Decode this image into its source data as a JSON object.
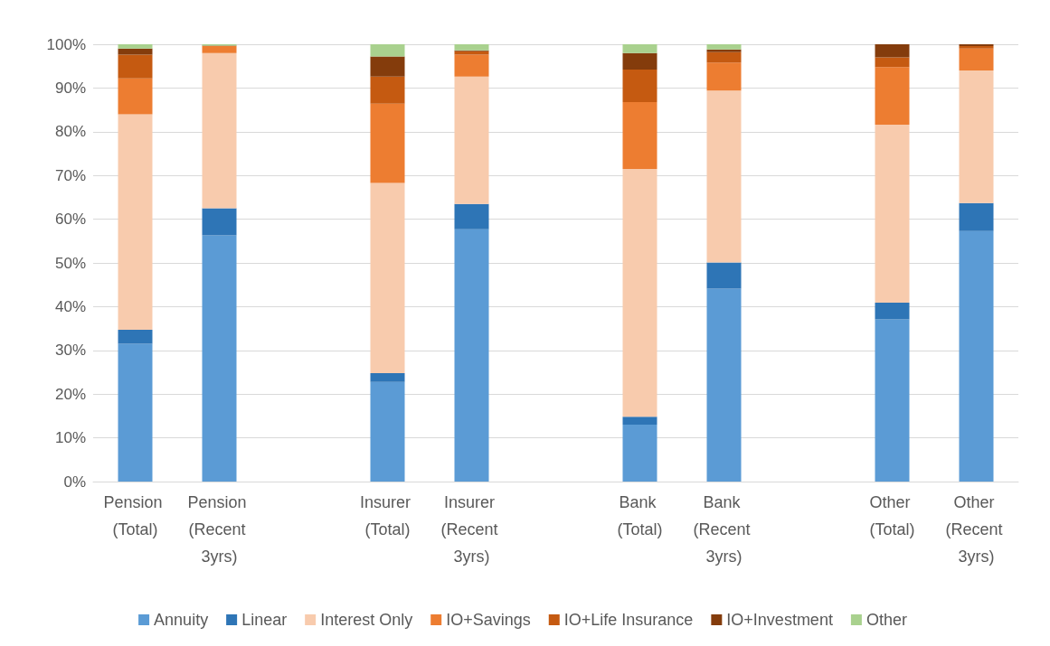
{
  "chart_data": {
    "type": "bar",
    "stacked": true,
    "grid": "y",
    "legend": "bottom",
    "categories": [
      "Pension (Total)",
      "Pension (Recent 3yrs)",
      null,
      "Insurer (Total)",
      "Insurer (Recent 3yrs)",
      null,
      "Bank (Total)",
      "Bank (Recent 3yrs)",
      null,
      "Other (Total)",
      "Other (Recent 3yrs)"
    ],
    "ylim": [
      0,
      100
    ],
    "yticks": [
      {
        "value": 0,
        "label": "0%"
      },
      {
        "value": 10,
        "label": "10%"
      },
      {
        "value": 20,
        "label": "20%"
      },
      {
        "value": 30,
        "label": "30%"
      },
      {
        "value": 40,
        "label": "40%"
      },
      {
        "value": 50,
        "label": "50%"
      },
      {
        "value": 60,
        "label": "60%"
      },
      {
        "value": 70,
        "label": "70%"
      },
      {
        "value": 80,
        "label": "80%"
      },
      {
        "value": 90,
        "label": "90%"
      },
      {
        "value": 100,
        "label": "100%"
      }
    ],
    "series": [
      {
        "name": "Annuity",
        "color": "#5b9bd5",
        "values": [
          31.5,
          56.3,
          null,
          22.8,
          57.7,
          null,
          13.0,
          44.1,
          null,
          37.1,
          57.3
        ]
      },
      {
        "name": "Linear",
        "color": "#2e75b6",
        "values": [
          3.2,
          6.2,
          null,
          2.0,
          5.8,
          null,
          1.8,
          6.0,
          null,
          3.8,
          6.4
        ]
      },
      {
        "name": "Interest Only",
        "color": "#f8cbad",
        "values": [
          49.3,
          35.5,
          null,
          43.5,
          29.1,
          null,
          56.7,
          39.3,
          null,
          40.7,
          30.3
        ]
      },
      {
        "name": "IO+Savings",
        "color": "#ed7d31",
        "values": [
          8.2,
          1.6,
          null,
          18.1,
          5.0,
          null,
          15.3,
          6.4,
          null,
          13.2,
          5.0
        ]
      },
      {
        "name": "IO+Life Insurance",
        "color": "#c55a11",
        "values": [
          5.4,
          0,
          null,
          6.2,
          0.8,
          null,
          7.4,
          2.4,
          null,
          2.2,
          0.6
        ]
      },
      {
        "name": "IO+Investment",
        "color": "#843c0c",
        "values": [
          1.4,
          0.1,
          null,
          4.6,
          0.2,
          null,
          3.8,
          0.6,
          null,
          3.0,
          0.4
        ]
      },
      {
        "name": "Other",
        "color": "#a9d18e",
        "values": [
          1.0,
          0.3,
          null,
          2.8,
          1.4,
          null,
          2.0,
          1.2,
          null,
          0,
          0
        ]
      }
    ]
  }
}
